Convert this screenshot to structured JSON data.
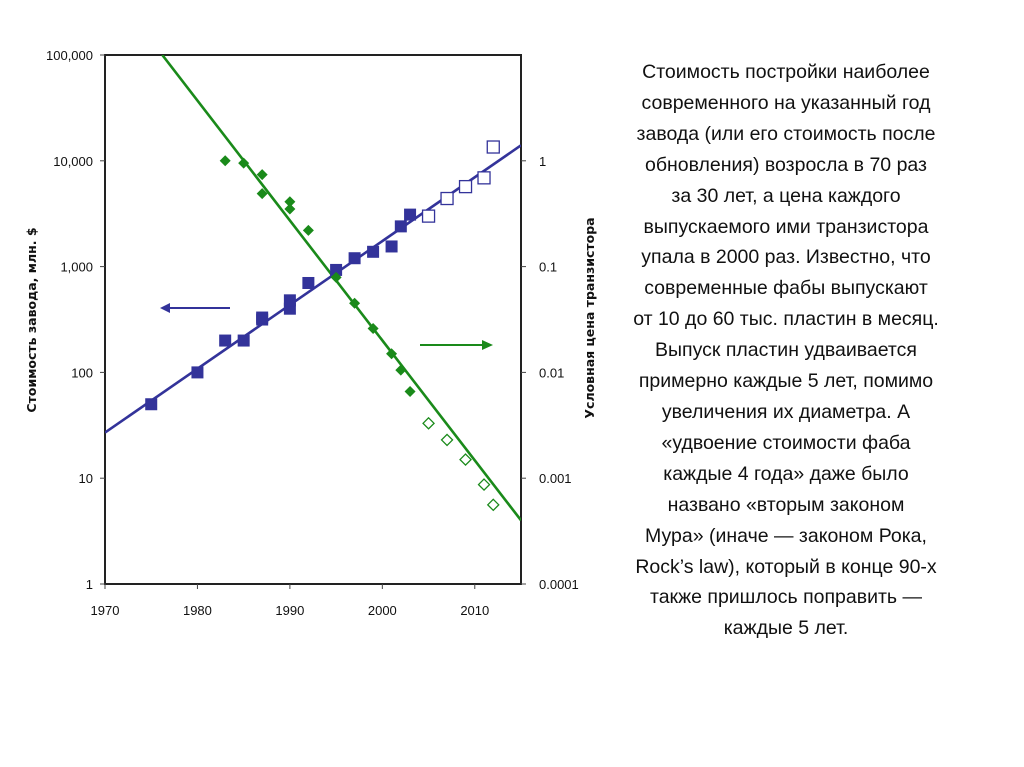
{
  "chart_data": {
    "type": "scatter",
    "xlabel": "",
    "ylabel_left": "Стоимость завода, млн. $",
    "ylabel_right": "Условная цена транзистора",
    "xlim": [
      1970,
      2015
    ],
    "ylim_left": [
      1,
      100000
    ],
    "ylim_right": [
      0.0001,
      10
    ],
    "yscale": "log",
    "grid": false,
    "x_ticks": [
      "1970",
      "1980",
      "1990",
      "2000",
      "2010"
    ],
    "x_tick_values": [
      1970,
      1980,
      1990,
      2000,
      2010
    ],
    "y_left_ticks": [
      "100,000",
      "10,000",
      "1,000",
      "100",
      "10",
      "1"
    ],
    "y_left_tick_values": [
      100000,
      10000,
      1000,
      100,
      10,
      1
    ],
    "y_right_ticks": [
      "1",
      "0.1",
      "0.01",
      "0.001",
      "0.0001"
    ],
    "y_right_tick_values": [
      1,
      0.1,
      0.01,
      0.001,
      0.0001
    ],
    "colors": {
      "fab_cost": "#33339a",
      "transistor_price": "#1a8a1a"
    },
    "series": [
      {
        "axis": "left",
        "marker": "square-filled",
        "points": [
          [
            1975,
            50
          ],
          [
            1980,
            100
          ],
          [
            1983,
            200
          ],
          [
            1985,
            200
          ],
          [
            1987,
            316
          ],
          [
            1987,
            330
          ],
          [
            1990,
            400
          ],
          [
            1990,
            480
          ],
          [
            1992,
            700
          ],
          [
            1995,
            930
          ],
          [
            1997,
            1200
          ],
          [
            1999,
            1380
          ],
          [
            2001,
            1550
          ],
          [
            2002,
            2400
          ],
          [
            2003,
            3100
          ]
        ]
      },
      {
        "axis": "left",
        "marker": "square-open",
        "points": [
          [
            2005,
            3000
          ],
          [
            2007,
            4400
          ],
          [
            2009,
            5700
          ],
          [
            2011,
            6900
          ],
          [
            2012,
            13500
          ]
        ]
      },
      {
        "axis": "left",
        "marker": "line",
        "points": [
          [
            1970,
            27
          ],
          [
            2015,
            14000
          ]
        ]
      },
      {
        "axis": "right",
        "marker": "diamond-filled",
        "points": [
          [
            1983,
            1.0
          ],
          [
            1985,
            0.95
          ],
          [
            1987,
            0.74
          ],
          [
            1987,
            0.49
          ],
          [
            1990,
            0.41
          ],
          [
            1990,
            0.35
          ],
          [
            1992,
            0.22
          ],
          [
            1995,
            0.079
          ],
          [
            1997,
            0.045
          ],
          [
            1999,
            0.026
          ],
          [
            2001,
            0.015
          ],
          [
            2002,
            0.0105
          ],
          [
            2003,
            0.0066
          ]
        ]
      },
      {
        "axis": "right",
        "marker": "diamond-open",
        "points": [
          [
            2005,
            0.0033
          ],
          [
            2007,
            0.0023
          ],
          [
            2009,
            0.0015
          ],
          [
            2011,
            0.00087
          ],
          [
            2012,
            0.00056
          ]
        ]
      },
      {
        "axis": "right",
        "marker": "line",
        "points": [
          [
            1976.2,
            10
          ],
          [
            2015,
            0.0004
          ]
        ]
      }
    ],
    "annotations": [
      {
        "type": "arrow",
        "direction": "left",
        "color": "#33339a",
        "meaning": "left-axis"
      },
      {
        "type": "arrow",
        "direction": "right",
        "color": "#1a8a1a",
        "meaning": "right-axis"
      }
    ]
  },
  "description_lines": [
    "Стоимость постройки наиболее",
    "современного на указанный год",
    "завода (или его стоимость после",
    "обновления) возросла в 70 раз",
    "за 30 лет, а цена каждого",
    "выпускаемого ими транзистора",
    "упала в 2000 раз. Известно, что",
    "современные фабы выпускают",
    "от 10 до 60 тыс. пластин в месяц.",
    "Выпуск пластин удваивается",
    "примерно каждые 5 лет, помимо",
    "увеличения их диаметра. А",
    "«удвоение стоимости фаба",
    "каждые 4 года» даже было",
    "названо «вторым законом",
    "Мура» (иначе — законом Рока,",
    "Rock’s law), который в конце 90-х",
    "также пришлось поправить —",
    "каждые 5 лет."
  ]
}
